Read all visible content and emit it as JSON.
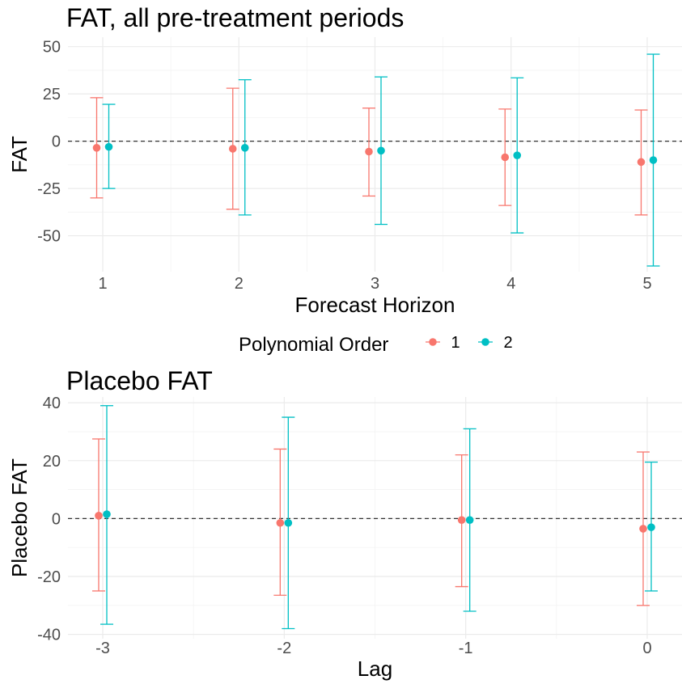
{
  "chart_data": [
    {
      "type": "errorbar",
      "title": "FAT, all pre-treatment periods",
      "xlabel": "Forecast Horizon",
      "ylabel": "FAT",
      "x_ticks": [
        "1",
        "2",
        "3",
        "4",
        "5"
      ],
      "y_ticks": [
        50,
        25,
        0,
        -25,
        -50
      ],
      "ylim": [
        -69,
        55
      ],
      "reference_line": 0,
      "series": [
        {
          "name": "1",
          "color": "#F8766D",
          "points": [
            {
              "x": "1",
              "estimate": -3.5,
              "lower": -30,
              "upper": 23
            },
            {
              "x": "2",
              "estimate": -4,
              "lower": -36,
              "upper": 28
            },
            {
              "x": "3",
              "estimate": -5.5,
              "lower": -29,
              "upper": 17.5
            },
            {
              "x": "4",
              "estimate": -8.5,
              "lower": -34,
              "upper": 17
            },
            {
              "x": "5",
              "estimate": -11,
              "lower": -39,
              "upper": 16.5
            }
          ]
        },
        {
          "name": "2",
          "color": "#00BFC4",
          "points": [
            {
              "x": "1",
              "estimate": -3,
              "lower": -25,
              "upper": 19.5
            },
            {
              "x": "2",
              "estimate": -3.5,
              "lower": -39,
              "upper": 32.5
            },
            {
              "x": "3",
              "estimate": -5,
              "lower": -44,
              "upper": 34
            },
            {
              "x": "4",
              "estimate": -7.5,
              "lower": -48.5,
              "upper": 33.5
            },
            {
              "x": "5",
              "estimate": -10,
              "lower": -66,
              "upper": 46
            }
          ]
        }
      ]
    },
    {
      "type": "errorbar",
      "title": "Placebo FAT",
      "xlabel": "Lag",
      "ylabel": "Placebo FAT",
      "x_ticks": [
        "-3",
        "-2",
        "-1",
        "0"
      ],
      "y_ticks": [
        40,
        20,
        0,
        -20,
        -40
      ],
      "ylim": [
        -41.5,
        42
      ],
      "reference_line": 0,
      "series": [
        {
          "name": "1",
          "color": "#F8766D",
          "points": [
            {
              "x": "-3",
              "estimate": 1,
              "lower": -25,
              "upper": 27.5
            },
            {
              "x": "-2",
              "estimate": -1.5,
              "lower": -26.5,
              "upper": 24
            },
            {
              "x": "-1",
              "estimate": -0.5,
              "lower": -23.5,
              "upper": 22
            },
            {
              "x": "0",
              "estimate": -3.5,
              "lower": -30,
              "upper": 23
            }
          ]
        },
        {
          "name": "2",
          "color": "#00BFC4",
          "points": [
            {
              "x": "-3",
              "estimate": 1.5,
              "lower": -36.5,
              "upper": 39
            },
            {
              "x": "-2",
              "estimate": -1.5,
              "lower": -38,
              "upper": 35
            },
            {
              "x": "-1",
              "estimate": -0.5,
              "lower": -32,
              "upper": 31
            },
            {
              "x": "0",
              "estimate": -3,
              "lower": -25,
              "upper": 19.5
            }
          ]
        }
      ]
    }
  ],
  "legend": {
    "title": "Polynomial Order",
    "placement": "between-panels",
    "items": [
      {
        "label": "1",
        "color": "#F8766D"
      },
      {
        "label": "2",
        "color": "#00BFC4"
      }
    ]
  }
}
